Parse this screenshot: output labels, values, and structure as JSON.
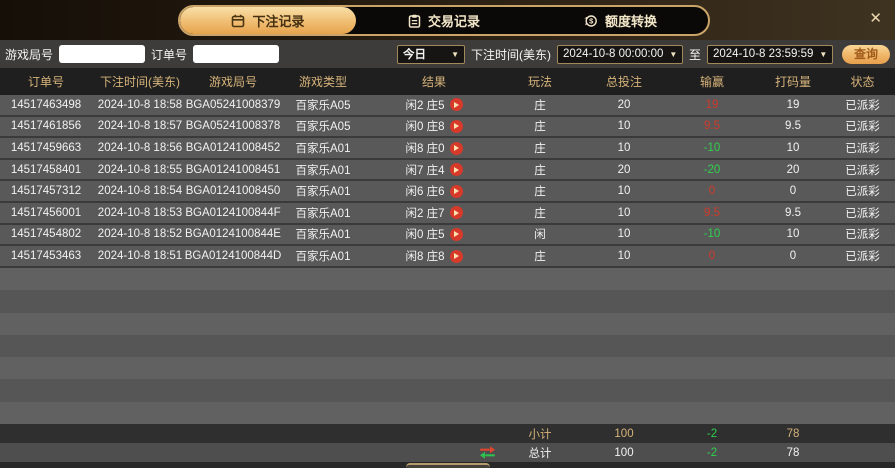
{
  "window": {
    "close_icon": "✕"
  },
  "icons": {
    "dropdown_arrow": "▼"
  },
  "tabs": [
    {
      "label": "下注记录",
      "icon": "calendar-icon",
      "active": true
    },
    {
      "label": "交易记录",
      "icon": "clipboard-icon",
      "active": false
    },
    {
      "label": "额度转换",
      "icon": "coin-exchange-icon",
      "active": false
    }
  ],
  "filters": {
    "game_round_label": "游戏局号",
    "game_round_value": "",
    "order_no_label": "订单号",
    "order_no_value": "",
    "range_preset": "今日",
    "bet_time_label": "下注时间(美东)",
    "time_from": "2024-10-8 00:00:00",
    "to_label": "至",
    "time_to": "2024-10-8 23:59:59",
    "query_label": "查询"
  },
  "table": {
    "headers": [
      "订单号",
      "下注时间(美东)",
      "游戏局号",
      "游戏类型",
      "结果",
      "玩法",
      "总投注",
      "输赢",
      "打码量",
      "状态"
    ],
    "rows": [
      {
        "order_no": "14517463498",
        "bet_time": "2024-10-8 18:58",
        "round": "BGA05241008379",
        "game_type": "百家乐A05",
        "result": "闲2 庄5",
        "play": "庄",
        "total_bet": "20",
        "win_loss": "19",
        "rolling": "19",
        "status": "已派彩"
      },
      {
        "order_no": "14517461856",
        "bet_time": "2024-10-8 18:57",
        "round": "BGA05241008378",
        "game_type": "百家乐A05",
        "result": "闲0 庄8",
        "play": "庄",
        "total_bet": "10",
        "win_loss": "9.5",
        "rolling": "9.5",
        "status": "已派彩"
      },
      {
        "order_no": "14517459663",
        "bet_time": "2024-10-8 18:56",
        "round": "BGA01241008452",
        "game_type": "百家乐A01",
        "result": "闲8 庄0",
        "play": "庄",
        "total_bet": "10",
        "win_loss": "-10",
        "rolling": "10",
        "status": "已派彩"
      },
      {
        "order_no": "14517458401",
        "bet_time": "2024-10-8 18:55",
        "round": "BGA01241008451",
        "game_type": "百家乐A01",
        "result": "闲7 庄4",
        "play": "庄",
        "total_bet": "20",
        "win_loss": "-20",
        "rolling": "20",
        "status": "已派彩"
      },
      {
        "order_no": "14517457312",
        "bet_time": "2024-10-8 18:54",
        "round": "BGA01241008450",
        "game_type": "百家乐A01",
        "result": "闲6 庄6",
        "play": "庄",
        "total_bet": "10",
        "win_loss": "0",
        "rolling": "0",
        "status": "已派彩"
      },
      {
        "order_no": "14517456001",
        "bet_time": "2024-10-8 18:53",
        "round": "BGA0124100844F",
        "game_type": "百家乐A01",
        "result": "闲2 庄7",
        "play": "庄",
        "total_bet": "10",
        "win_loss": "9.5",
        "rolling": "9.5",
        "status": "已派彩"
      },
      {
        "order_no": "14517454802",
        "bet_time": "2024-10-8 18:52",
        "round": "BGA0124100844E",
        "game_type": "百家乐A01",
        "result": "闲0 庄5",
        "play": "闲",
        "total_bet": "10",
        "win_loss": "-10",
        "rolling": "10",
        "status": "已派彩"
      },
      {
        "order_no": "14517453463",
        "bet_time": "2024-10-8 18:51",
        "round": "BGA0124100844D",
        "game_type": "百家乐A01",
        "result": "闲8 庄8",
        "play": "庄",
        "total_bet": "10",
        "win_loss": "0",
        "rolling": "0",
        "status": "已派彩"
      }
    ]
  },
  "summary": {
    "subtotal_label": "小计",
    "subtotal_bet": "100",
    "subtotal_winloss": "-2",
    "subtotal_rolling": "78",
    "total_label": "总计",
    "total_bet": "100",
    "total_winloss": "-2",
    "total_rolling": "78"
  },
  "colors": {
    "accent_gold": "#e9b05b",
    "win_red": "#cf3a2b",
    "loss_green": "#2fd14f",
    "header_text": "#d6b37a",
    "row_bg": "#595959"
  }
}
